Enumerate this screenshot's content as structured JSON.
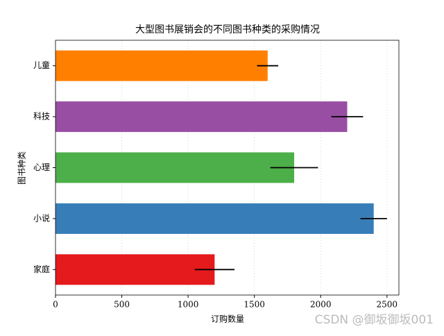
{
  "chart_data": {
    "type": "barh",
    "title": "大型图书展销会的不同图书种类的采购情况",
    "xlabel": "订购数量",
    "ylabel": "图书种类",
    "categories": [
      "家庭",
      "小说",
      "心理",
      "科技",
      "儿童"
    ],
    "values": [
      1200,
      2400,
      1800,
      2200,
      1600
    ],
    "errors": [
      150,
      100,
      180,
      120,
      80
    ],
    "colors": [
      "#e41a1c",
      "#377eb8",
      "#4daf4a",
      "#984ea3",
      "#ff7f00"
    ],
    "error_color": "#000000",
    "xlim": [
      0,
      2590
    ],
    "xticks": [
      0,
      500,
      1000,
      1500,
      2000,
      2500
    ],
    "grid": true,
    "watermark": "CSDN @御坂御坂001"
  }
}
